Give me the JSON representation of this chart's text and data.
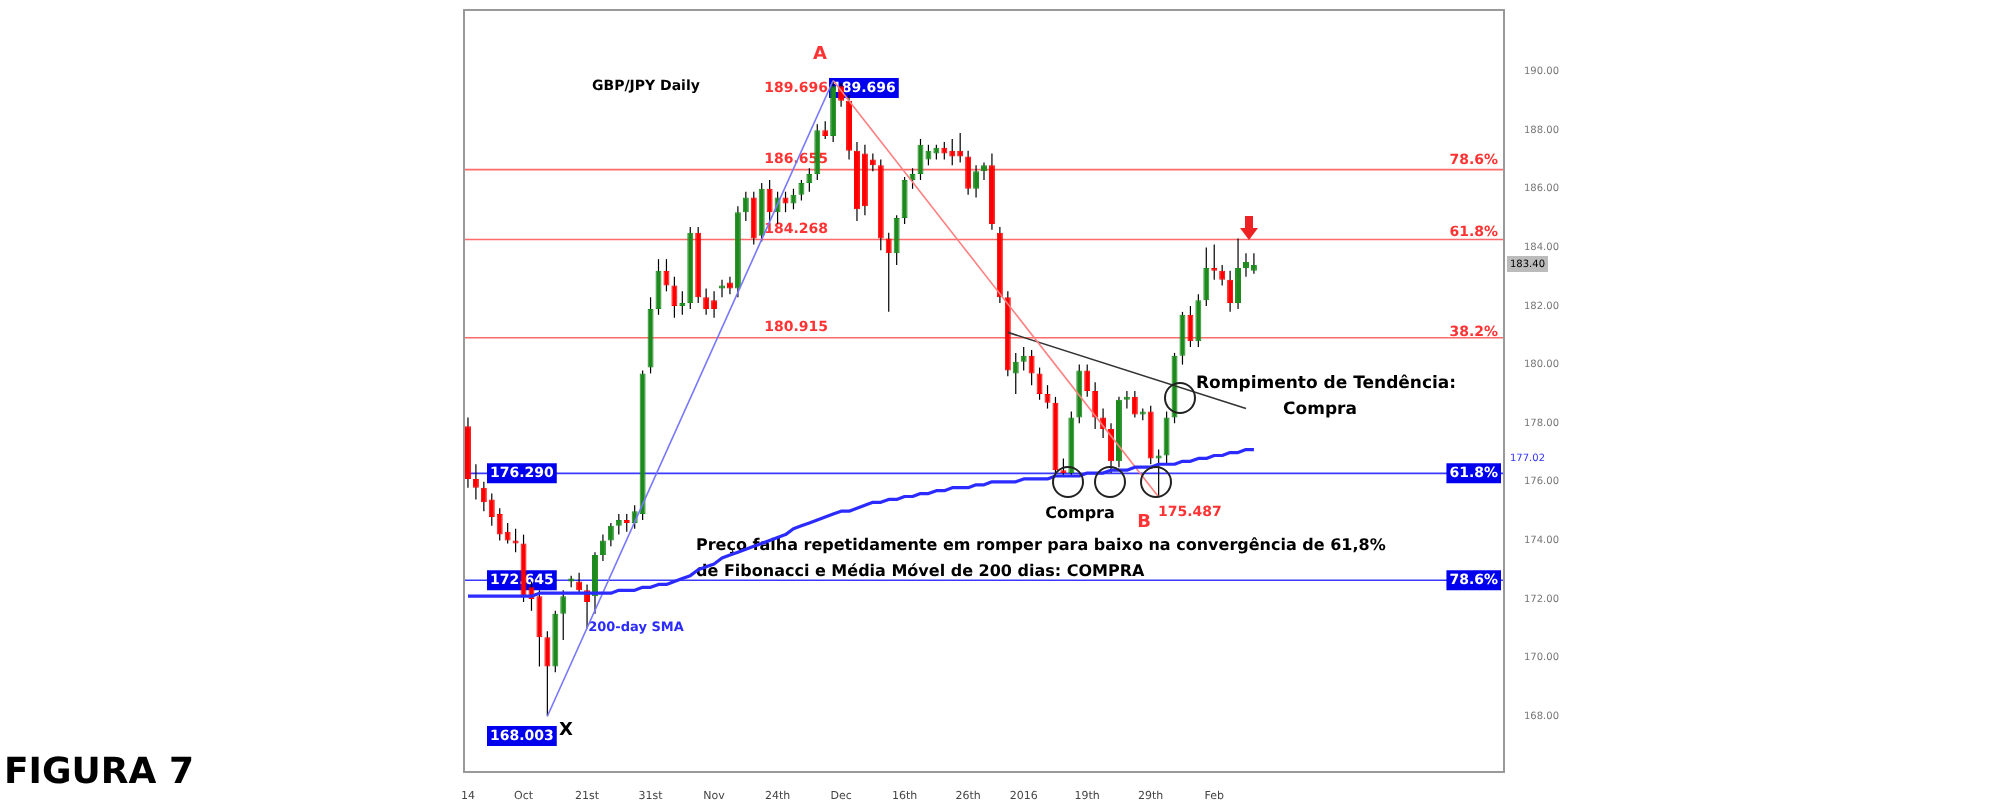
{
  "chart_data": {
    "type": "candlestick",
    "title": "GBP/JPY Daily",
    "categories": [
      "14",
      null,
      null,
      null,
      null,
      null,
      null,
      "Oct",
      null,
      null,
      null,
      null,
      null,
      null,
      null,
      "21st",
      null,
      null,
      null,
      null,
      null,
      null,
      null,
      "31st",
      null,
      null,
      null,
      null,
      null,
      null,
      null,
      "Nov",
      null,
      null,
      null,
      null,
      null,
      null,
      null,
      "24th",
      null,
      null,
      null,
      null,
      null,
      null,
      null,
      "Dec",
      null,
      null,
      null,
      null,
      null,
      null,
      null,
      "16th",
      null,
      null,
      null,
      null,
      null,
      null,
      null,
      "26th",
      null,
      null,
      null,
      null,
      null,
      null,
      "2016",
      null,
      null,
      null,
      null,
      null,
      null,
      null,
      "19th",
      null,
      null,
      null,
      null,
      null,
      null,
      null,
      "29th",
      null,
      null,
      null,
      null,
      null,
      null,
      null,
      "Feb",
      null,
      null,
      null,
      null,
      null,
      null,
      null,
      null,
      null,
      null,
      null,
      null,
      null,
      null,
      null,
      null,
      null,
      null,
      null,
      null,
      null,
      null,
      null,
      null,
      null,
      null,
      null,
      null,
      null,
      null,
      null,
      null,
      null,
      null,
      null,
      null
    ],
    "series": [
      {
        "type": "candlestick",
        "ohlc": [
          [
            177.9,
            178.2,
            175.8,
            176.1
          ],
          [
            176.1,
            176.6,
            175.4,
            175.8
          ],
          [
            175.8,
            176.0,
            175.0,
            175.3
          ],
          [
            175.4,
            175.6,
            174.5,
            174.8
          ],
          [
            174.9,
            175.1,
            174.0,
            174.2
          ],
          [
            174.3,
            174.6,
            173.9,
            174.0
          ],
          [
            174.0,
            174.4,
            173.6,
            173.9
          ],
          [
            173.9,
            174.2,
            171.9,
            172.1
          ],
          [
            172.4,
            172.6,
            171.6,
            172.0
          ],
          [
            172.1,
            172.3,
            169.7,
            170.7
          ],
          [
            170.7,
            170.9,
            168.003,
            169.7
          ],
          [
            169.7,
            171.6,
            169.5,
            171.5
          ],
          [
            171.5,
            172.3,
            170.6,
            172.1
          ],
          [
            172.6,
            172.8,
            172.4,
            172.7
          ],
          [
            172.6,
            172.9,
            172.2,
            172.3
          ],
          [
            172.3,
            172.5,
            171.0,
            171.9
          ],
          [
            172.1,
            173.6,
            171.5,
            173.5
          ],
          [
            173.5,
            174.2,
            173.3,
            174.0
          ],
          [
            174.0,
            174.6,
            173.8,
            174.5
          ],
          [
            174.5,
            174.9,
            174.2,
            174.7
          ],
          [
            174.7,
            174.9,
            174.3,
            174.6
          ],
          [
            174.6,
            175.2,
            174.4,
            175.0
          ],
          [
            174.9,
            179.8,
            174.7,
            179.7
          ],
          [
            179.9,
            182.3,
            179.7,
            181.9
          ],
          [
            181.9,
            183.6,
            181.7,
            183.2
          ],
          [
            183.2,
            183.6,
            182.5,
            182.7
          ],
          [
            182.7,
            183.0,
            181.6,
            182.0
          ],
          [
            182.0,
            182.5,
            181.7,
            182.1
          ],
          [
            182.1,
            184.7,
            181.9,
            184.5
          ],
          [
            184.5,
            184.7,
            182.1,
            182.3
          ],
          [
            182.3,
            182.6,
            181.7,
            181.9
          ],
          [
            182.2,
            182.5,
            181.6,
            181.9
          ],
          [
            182.6,
            182.9,
            182.3,
            182.7
          ],
          [
            182.8,
            183.0,
            182.4,
            182.6
          ],
          [
            182.6,
            185.4,
            182.3,
            185.2
          ],
          [
            185.2,
            185.9,
            184.9,
            185.7
          ],
          [
            185.7,
            185.9,
            184.1,
            184.3
          ],
          [
            184.4,
            186.2,
            184.2,
            186.0
          ],
          [
            186.0,
            186.3,
            184.9,
            185.2
          ],
          [
            185.2,
            185.9,
            184.8,
            185.7
          ],
          [
            185.7,
            185.9,
            185.2,
            185.5
          ],
          [
            185.5,
            186.0,
            185.3,
            185.8
          ],
          [
            185.8,
            186.3,
            185.6,
            186.2
          ],
          [
            186.2,
            186.7,
            185.9,
            186.5
          ],
          [
            186.5,
            188.2,
            186.3,
            188.0
          ],
          [
            188.0,
            188.3,
            187.7,
            187.8
          ],
          [
            187.8,
            189.696,
            187.6,
            189.5
          ],
          [
            189.5,
            189.6,
            188.8,
            189.0
          ],
          [
            189.0,
            189.2,
            187.0,
            187.3
          ],
          [
            187.3,
            187.6,
            184.9,
            185.3
          ],
          [
            187.2,
            187.5,
            185.1,
            185.4
          ],
          [
            187.0,
            187.2,
            186.6,
            186.8
          ],
          [
            186.8,
            187.0,
            183.9,
            184.3
          ],
          [
            184.3,
            184.5,
            181.8,
            183.8
          ],
          [
            183.8,
            185.1,
            183.4,
            185.0
          ],
          [
            185.0,
            186.4,
            184.8,
            186.3
          ],
          [
            186.3,
            186.7,
            186.0,
            186.5
          ],
          [
            186.5,
            187.7,
            186.3,
            187.5
          ],
          [
            187.0,
            187.5,
            186.8,
            187.3
          ],
          [
            187.2,
            187.5,
            187.0,
            187.4
          ],
          [
            187.4,
            187.6,
            187.0,
            187.2
          ],
          [
            187.3,
            187.7,
            186.8,
            187.1
          ],
          [
            187.3,
            187.9,
            186.9,
            187.1
          ],
          [
            187.1,
            187.3,
            185.8,
            186.0
          ],
          [
            186.0,
            186.8,
            185.7,
            186.6
          ],
          [
            186.6,
            186.9,
            186.3,
            186.8
          ],
          [
            186.8,
            187.2,
            184.6,
            184.8
          ],
          [
            184.5,
            184.7,
            182.1,
            182.3
          ],
          [
            182.3,
            182.5,
            179.6,
            179.8
          ],
          [
            179.7,
            180.4,
            179.0,
            180.1
          ],
          [
            180.1,
            180.6,
            179.8,
            180.3
          ],
          [
            180.3,
            180.5,
            179.3,
            179.7
          ],
          [
            179.7,
            179.9,
            178.8,
            179.0
          ],
          [
            179.0,
            179.3,
            178.5,
            178.7
          ],
          [
            178.7,
            178.9,
            176.2,
            176.4
          ],
          [
            176.4,
            176.8,
            176.2,
            176.3
          ],
          [
            176.3,
            178.4,
            176.2,
            178.2
          ],
          [
            178.2,
            180.0,
            178.0,
            179.8
          ],
          [
            179.8,
            180.0,
            178.9,
            179.1
          ],
          [
            179.1,
            179.4,
            177.8,
            178.2
          ],
          [
            178.2,
            178.5,
            177.5,
            177.8
          ],
          [
            177.8,
            178.0,
            176.3,
            176.7
          ],
          [
            176.7,
            178.9,
            176.5,
            178.8
          ],
          [
            178.8,
            179.1,
            178.5,
            178.9
          ],
          [
            178.9,
            179.1,
            178.2,
            178.3
          ],
          [
            178.3,
            178.5,
            178.1,
            178.4
          ],
          [
            178.4,
            178.6,
            176.6,
            176.8
          ],
          [
            176.8,
            177.1,
            175.487,
            176.9
          ],
          [
            176.9,
            178.4,
            176.6,
            178.2
          ],
          [
            178.2,
            180.4,
            178.0,
            180.3
          ],
          [
            180.3,
            181.8,
            180.0,
            181.7
          ],
          [
            181.7,
            182.0,
            180.6,
            180.8
          ],
          [
            180.8,
            182.4,
            180.6,
            182.2
          ],
          [
            182.2,
            184.0,
            182.0,
            183.3
          ],
          [
            183.3,
            184.1,
            182.9,
            183.2
          ],
          [
            183.2,
            183.4,
            182.7,
            182.9
          ],
          [
            182.9,
            183.2,
            181.8,
            182.1
          ],
          [
            182.1,
            184.3,
            181.9,
            183.3
          ],
          [
            183.3,
            183.8,
            183.0,
            183.5
          ],
          [
            183.2,
            183.8,
            183.1,
            183.4
          ],
          null,
          null,
          null,
          null,
          null,
          null,
          null,
          null,
          null,
          null,
          null,
          null,
          null,
          null,
          null,
          null,
          null,
          null,
          null,
          null,
          null,
          null,
          null,
          null,
          null,
          null,
          null,
          null,
          null,
          null,
          null
        ],
        "colors": [
          "#ff0000",
          "#ff0000",
          "#ff0000",
          "#ff0000",
          "#ff0000",
          "#ff0000",
          "#ff0000",
          "#ff0000",
          "#ff0000",
          "#ff0000",
          "#ff0000",
          "#1d8a1d",
          "#1d8a1d",
          "#1d8a1d",
          "#ff0000",
          "#ff0000",
          "#1d8a1d",
          "#1d8a1d",
          "#1d8a1d",
          "#1d8a1d",
          "#ff0000",
          "#1d8a1d",
          "#1d8a1d",
          "#1d8a1d",
          "#1d8a1d",
          "#ff0000",
          "#ff0000",
          "#1d8a1d",
          "#1d8a1d",
          "#ff0000",
          "#ff0000",
          "#ff0000",
          "#1d8a1d",
          "#ff0000",
          "#1d8a1d",
          "#1d8a1d",
          "#ff0000",
          "#1d8a1d",
          "#ff0000",
          "#1d8a1d",
          "#ff0000",
          "#1d8a1d",
          "#1d8a1d",
          "#1d8a1d",
          "#1d8a1d",
          "#ff0000",
          "#1d8a1d",
          "#ff0000",
          "#ff0000",
          "#ff0000",
          "#ff0000",
          "#ff0000",
          "#ff0000",
          "#ff0000",
          "#1d8a1d",
          "#1d8a1d",
          "#1d8a1d",
          "#1d8a1d",
          "#1d8a1d",
          "#1d8a1d",
          "#ff0000",
          "#ff0000",
          "#ff0000",
          "#ff0000",
          "#1d8a1d",
          "#1d8a1d",
          "#ff0000",
          "#ff0000",
          "#ff0000",
          "#1d8a1d",
          "#1d8a1d",
          "#ff0000",
          "#ff0000",
          "#ff0000",
          "#ff0000",
          "#ff0000",
          "#1d8a1d",
          "#1d8a1d",
          "#ff0000",
          "#ff0000",
          "#ff0000",
          "#ff0000",
          "#1d8a1d",
          "#1d8a1d",
          "#ff0000",
          "#1d8a1d",
          "#ff0000",
          "#1d8a1d",
          "#1d8a1d",
          "#1d8a1d",
          "#1d8a1d",
          "#ff0000",
          "#1d8a1d",
          "#1d8a1d",
          "#ff0000",
          "#ff0000",
          "#ff0000",
          "#1d8a1d",
          "#1d8a1d",
          "#1d8a1d",
          null,
          null,
          null,
          null,
          null,
          null,
          null,
          null,
          null,
          null,
          null,
          null,
          null,
          null,
          null,
          null,
          null,
          null,
          null,
          null,
          null,
          null,
          null,
          null,
          null,
          null,
          null,
          null,
          null,
          null,
          null
        ]
      },
      {
        "type": "line",
        "name": "200-day SMA",
        "color": "#2b2bff",
        "values": [
          172.1,
          172.1,
          172.1,
          172.1,
          172.1,
          172.1,
          172.1,
          172.1,
          172.1,
          172.2,
          172.2,
          172.2,
          172.2,
          172.2,
          172.2,
          172.2,
          172.2,
          172.2,
          172.2,
          172.3,
          172.3,
          172.3,
          172.4,
          172.4,
          172.5,
          172.5,
          172.6,
          172.7,
          172.8,
          173.0,
          173.1,
          173.2,
          173.4,
          173.5,
          173.6,
          173.7,
          173.8,
          173.9,
          174.0,
          174.1,
          174.2,
          174.4,
          174.5,
          174.6,
          174.7,
          174.8,
          174.9,
          175.0,
          175.0,
          175.1,
          175.2,
          175.3,
          175.3,
          175.4,
          175.4,
          175.5,
          175.5,
          175.6,
          175.6,
          175.7,
          175.7,
          175.8,
          175.8,
          175.8,
          175.9,
          175.9,
          176.0,
          176.0,
          176.0,
          176.0,
          176.1,
          176.1,
          176.1,
          176.1,
          176.2,
          176.2,
          176.2,
          176.2,
          176.3,
          176.3,
          176.3,
          176.4,
          176.4,
          176.4,
          176.5,
          176.5,
          176.5,
          176.6,
          176.6,
          176.6,
          176.7,
          176.7,
          176.8,
          176.8,
          176.9,
          176.9,
          177.0,
          177.0,
          177.1,
          177.1,
          null,
          null,
          null,
          null,
          null,
          null,
          null,
          null,
          null,
          null,
          null,
          null,
          null,
          null,
          null,
          null,
          null,
          null,
          null,
          null,
          null,
          null,
          null,
          null,
          null,
          null,
          null,
          null,
          null,
          null,
          null
        ]
      },
      {
        "type": "line",
        "color": "#7777ff",
        "values": [
          null,
          null,
          null,
          null,
          null,
          null,
          null,
          null,
          null,
          null,
          168.003,
          null,
          null,
          null,
          null,
          null,
          null,
          null,
          null,
          null,
          null,
          null,
          null,
          null,
          null,
          null,
          null,
          null,
          null,
          null,
          null,
          null,
          null,
          null,
          null,
          null,
          null,
          null,
          null,
          null,
          null,
          null,
          null,
          null,
          null,
          null,
          189.696,
          null,
          null,
          null,
          null,
          null,
          null,
          null,
          null,
          null,
          null,
          null,
          null,
          null,
          null,
          null,
          null,
          null,
          null,
          null,
          null,
          null,
          null,
          null,
          null,
          null,
          null,
          null,
          null,
          null,
          null,
          null,
          null,
          null,
          null,
          null,
          null,
          null,
          null,
          null,
          null,
          null,
          null,
          null,
          null,
          null,
          null,
          null,
          null,
          null,
          null,
          null,
          null,
          null,
          null,
          null,
          null,
          null,
          null,
          null,
          null,
          null,
          null,
          null,
          null,
          null,
          null,
          null,
          null,
          null,
          null,
          null,
          null,
          null,
          null,
          null,
          null,
          null,
          null,
          null,
          null,
          null,
          null,
          null,
          null
        ]
      },
      {
        "type": "line",
        "color": "#ff8080",
        "values": [
          null,
          null,
          null,
          null,
          null,
          null,
          null,
          null,
          null,
          null,
          null,
          null,
          null,
          null,
          null,
          null,
          null,
          null,
          null,
          null,
          null,
          null,
          null,
          null,
          null,
          null,
          null,
          null,
          null,
          null,
          null,
          null,
          null,
          null,
          null,
          null,
          null,
          null,
          null,
          null,
          null,
          null,
          null,
          null,
          null,
          null,
          189.696,
          null,
          null,
          null,
          null,
          null,
          null,
          null,
          null,
          null,
          null,
          null,
          null,
          null,
          null,
          null,
          null,
          null,
          null,
          null,
          null,
          null,
          null,
          null,
          null,
          null,
          null,
          null,
          null,
          null,
          null,
          null,
          null,
          null,
          null,
          null,
          null,
          null,
          null,
          null,
          null,
          175.487,
          null,
          null,
          null,
          null,
          null,
          null,
          null,
          null,
          null,
          null,
          null,
          null,
          null,
          null,
          null,
          null,
          null,
          null,
          null,
          null,
          null,
          null,
          null,
          null,
          null,
          null,
          null,
          null,
          null,
          null,
          null,
          null,
          null,
          null,
          null,
          null,
          null,
          null,
          null,
          null,
          null,
          null,
          null
        ]
      },
      {
        "type": "line",
        "color": "#333333",
        "values": [
          null,
          null,
          null,
          null,
          null,
          null,
          null,
          null,
          null,
          null,
          null,
          null,
          null,
          null,
          null,
          null,
          null,
          null,
          null,
          null,
          null,
          null,
          null,
          null,
          null,
          null,
          null,
          null,
          null,
          null,
          null,
          null,
          null,
          null,
          null,
          null,
          null,
          null,
          null,
          null,
          null,
          null,
          null,
          null,
          null,
          null,
          null,
          null,
          null,
          null,
          null,
          null,
          null,
          null,
          null,
          null,
          null,
          null,
          null,
          null,
          null,
          null,
          null,
          null,
          null,
          null,
          null,
          null,
          181.1,
          null,
          null,
          null,
          null,
          null,
          null,
          null,
          null,
          null,
          null,
          null,
          null,
          null,
          null,
          null,
          null,
          null,
          null,
          null,
          null,
          null,
          null,
          null,
          null,
          null,
          null,
          null,
          null,
          null,
          178.5,
          null,
          null,
          null,
          null,
          null,
          null,
          null,
          null,
          null,
          null,
          null,
          null,
          null,
          null,
          null,
          null,
          null,
          null,
          null,
          null,
          null,
          null,
          null,
          null,
          null,
          null,
          null,
          null,
          null,
          null,
          null,
          null
        ]
      }
    ],
    "ylim": [
      166.1,
      192.1
    ],
    "yticks": [
      {
        "value": 168,
        "label": "168.00"
      },
      {
        "value": 170,
        "label": "170.00"
      },
      {
        "value": 172,
        "label": "172.00"
      },
      {
        "value": 174,
        "label": "174.00"
      },
      {
        "value": 176,
        "label": "176.00"
      },
      {
        "value": 178,
        "label": "178.00"
      },
      {
        "value": 180,
        "label": "180.00"
      },
      {
        "value": 182,
        "label": "182.00"
      },
      {
        "value": 184,
        "label": "184.00"
      },
      {
        "value": 186,
        "label": "186.00"
      },
      {
        "value": 188,
        "label": "188.00"
      },
      {
        "value": 190,
        "label": "190.00"
      }
    ],
    "ref_lines": [
      {
        "axis": "y",
        "value": 186.655,
        "label": "186.655",
        "color": "#ff6a6a"
      },
      {
        "axis": "y",
        "value": 184.268,
        "label": "184.268",
        "color": "#ff6a6a"
      },
      {
        "axis": "y",
        "value": 180.915,
        "label": "180.915",
        "color": "#ff6a6a"
      },
      {
        "axis": "y",
        "value": 176.29,
        "label": "176.290",
        "color": "#3a3aff"
      },
      {
        "axis": "y",
        "value": 172.645,
        "label": "172.645",
        "color": "#3a3aff"
      }
    ],
    "annotations": [
      "FIGURA 7",
      "A",
      "189.696",
      "189.696",
      "168.003",
      "X",
      "B",
      "175.487",
      "Compra",
      "Rompimento de Tendência:",
      "Compra",
      "Preço falha repetidamente em romper para baixo na convergência de 61,8%",
      "de Fibonacci e Média Móvel de 200 dias: COMPRA",
      "177.02",
      "183.40",
      "78.6%",
      "61.8%",
      "38.2%",
      "61.8%",
      "78.6%"
    ]
  }
}
